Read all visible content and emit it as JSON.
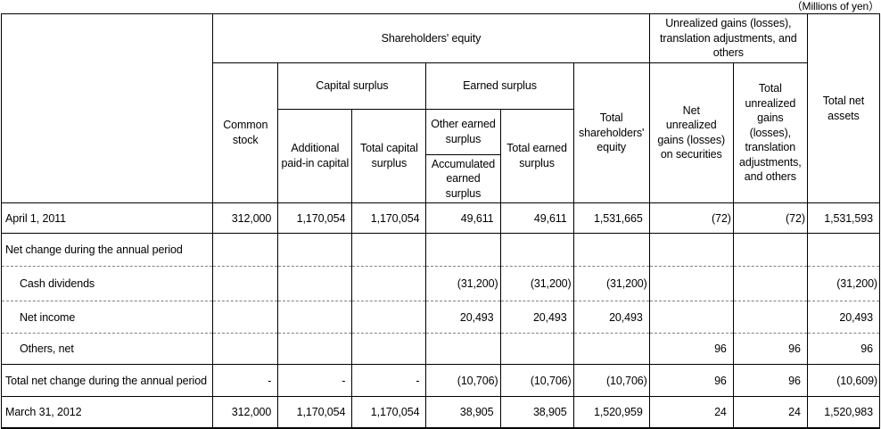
{
  "note": "（Millions of yen）",
  "table": {
    "headers": {
      "group_shareholders_equity": "Shareholders' equity",
      "group_unrealized": "Unrealized gains (losses), translation adjustments, and others",
      "total_net_assets": "Total net\nassets",
      "common_stock": "Common\nstock",
      "capital_surplus": "Capital surplus",
      "earned_surplus": "Earned surplus",
      "additional_paid_in_capital": "Additional\npaid-in capital",
      "total_capital_surplus": "Total capital\nsurplus",
      "other_earned_surplus": "Other earned\nsurplus",
      "accumulated_earned_surplus": "Accumulated\nearned\nsurplus",
      "total_earned_surplus": "Total earned\nsurplus",
      "total_shareholders_equity": "Total\nshareholders'\nequity",
      "net_unrealized_gains": "Net\nunrealized\ngains (losses)\non securities",
      "total_unrealized_gains": "Total\nunrealized\ngains\n(losses),\ntranslation\nadjustments,\nand others"
    },
    "rows": [
      {
        "label": "April 1, 2011",
        "indent": false,
        "values": [
          "312,000",
          "1,170,054",
          "1,170,054",
          "49,611",
          "49,611",
          "1,531,665",
          "(72)",
          "(72)",
          "1,531,593"
        ]
      },
      {
        "label": "Net change during the annual period",
        "indent": false,
        "values": [
          "",
          "",
          "",
          "",
          "",
          "",
          "",
          "",
          ""
        ]
      },
      {
        "label": "Cash dividends",
        "indent": true,
        "values": [
          "",
          "",
          "",
          "(31,200)",
          "(31,200)",
          "(31,200)",
          "",
          "",
          "(31,200)"
        ]
      },
      {
        "label": "Net income",
        "indent": true,
        "values": [
          "",
          "",
          "",
          "20,493",
          "20,493",
          "20,493",
          "",
          "",
          "20,493"
        ]
      },
      {
        "label": "Others, net",
        "indent": true,
        "values": [
          "",
          "",
          "",
          "",
          "",
          "",
          "96",
          "96",
          "96"
        ]
      },
      {
        "label": "Total net change during the annual period",
        "indent": false,
        "values": [
          "-",
          "-",
          "-",
          "(10,706)",
          "(10,706)",
          "(10,706)",
          "96",
          "96",
          "(10,609)"
        ]
      },
      {
        "label": "March 31, 2012",
        "indent": false,
        "values": [
          "312,000",
          "1,170,054",
          "1,170,054",
          "38,905",
          "38,905",
          "1,520,959",
          "24",
          "24",
          "1,520,983"
        ]
      }
    ]
  }
}
